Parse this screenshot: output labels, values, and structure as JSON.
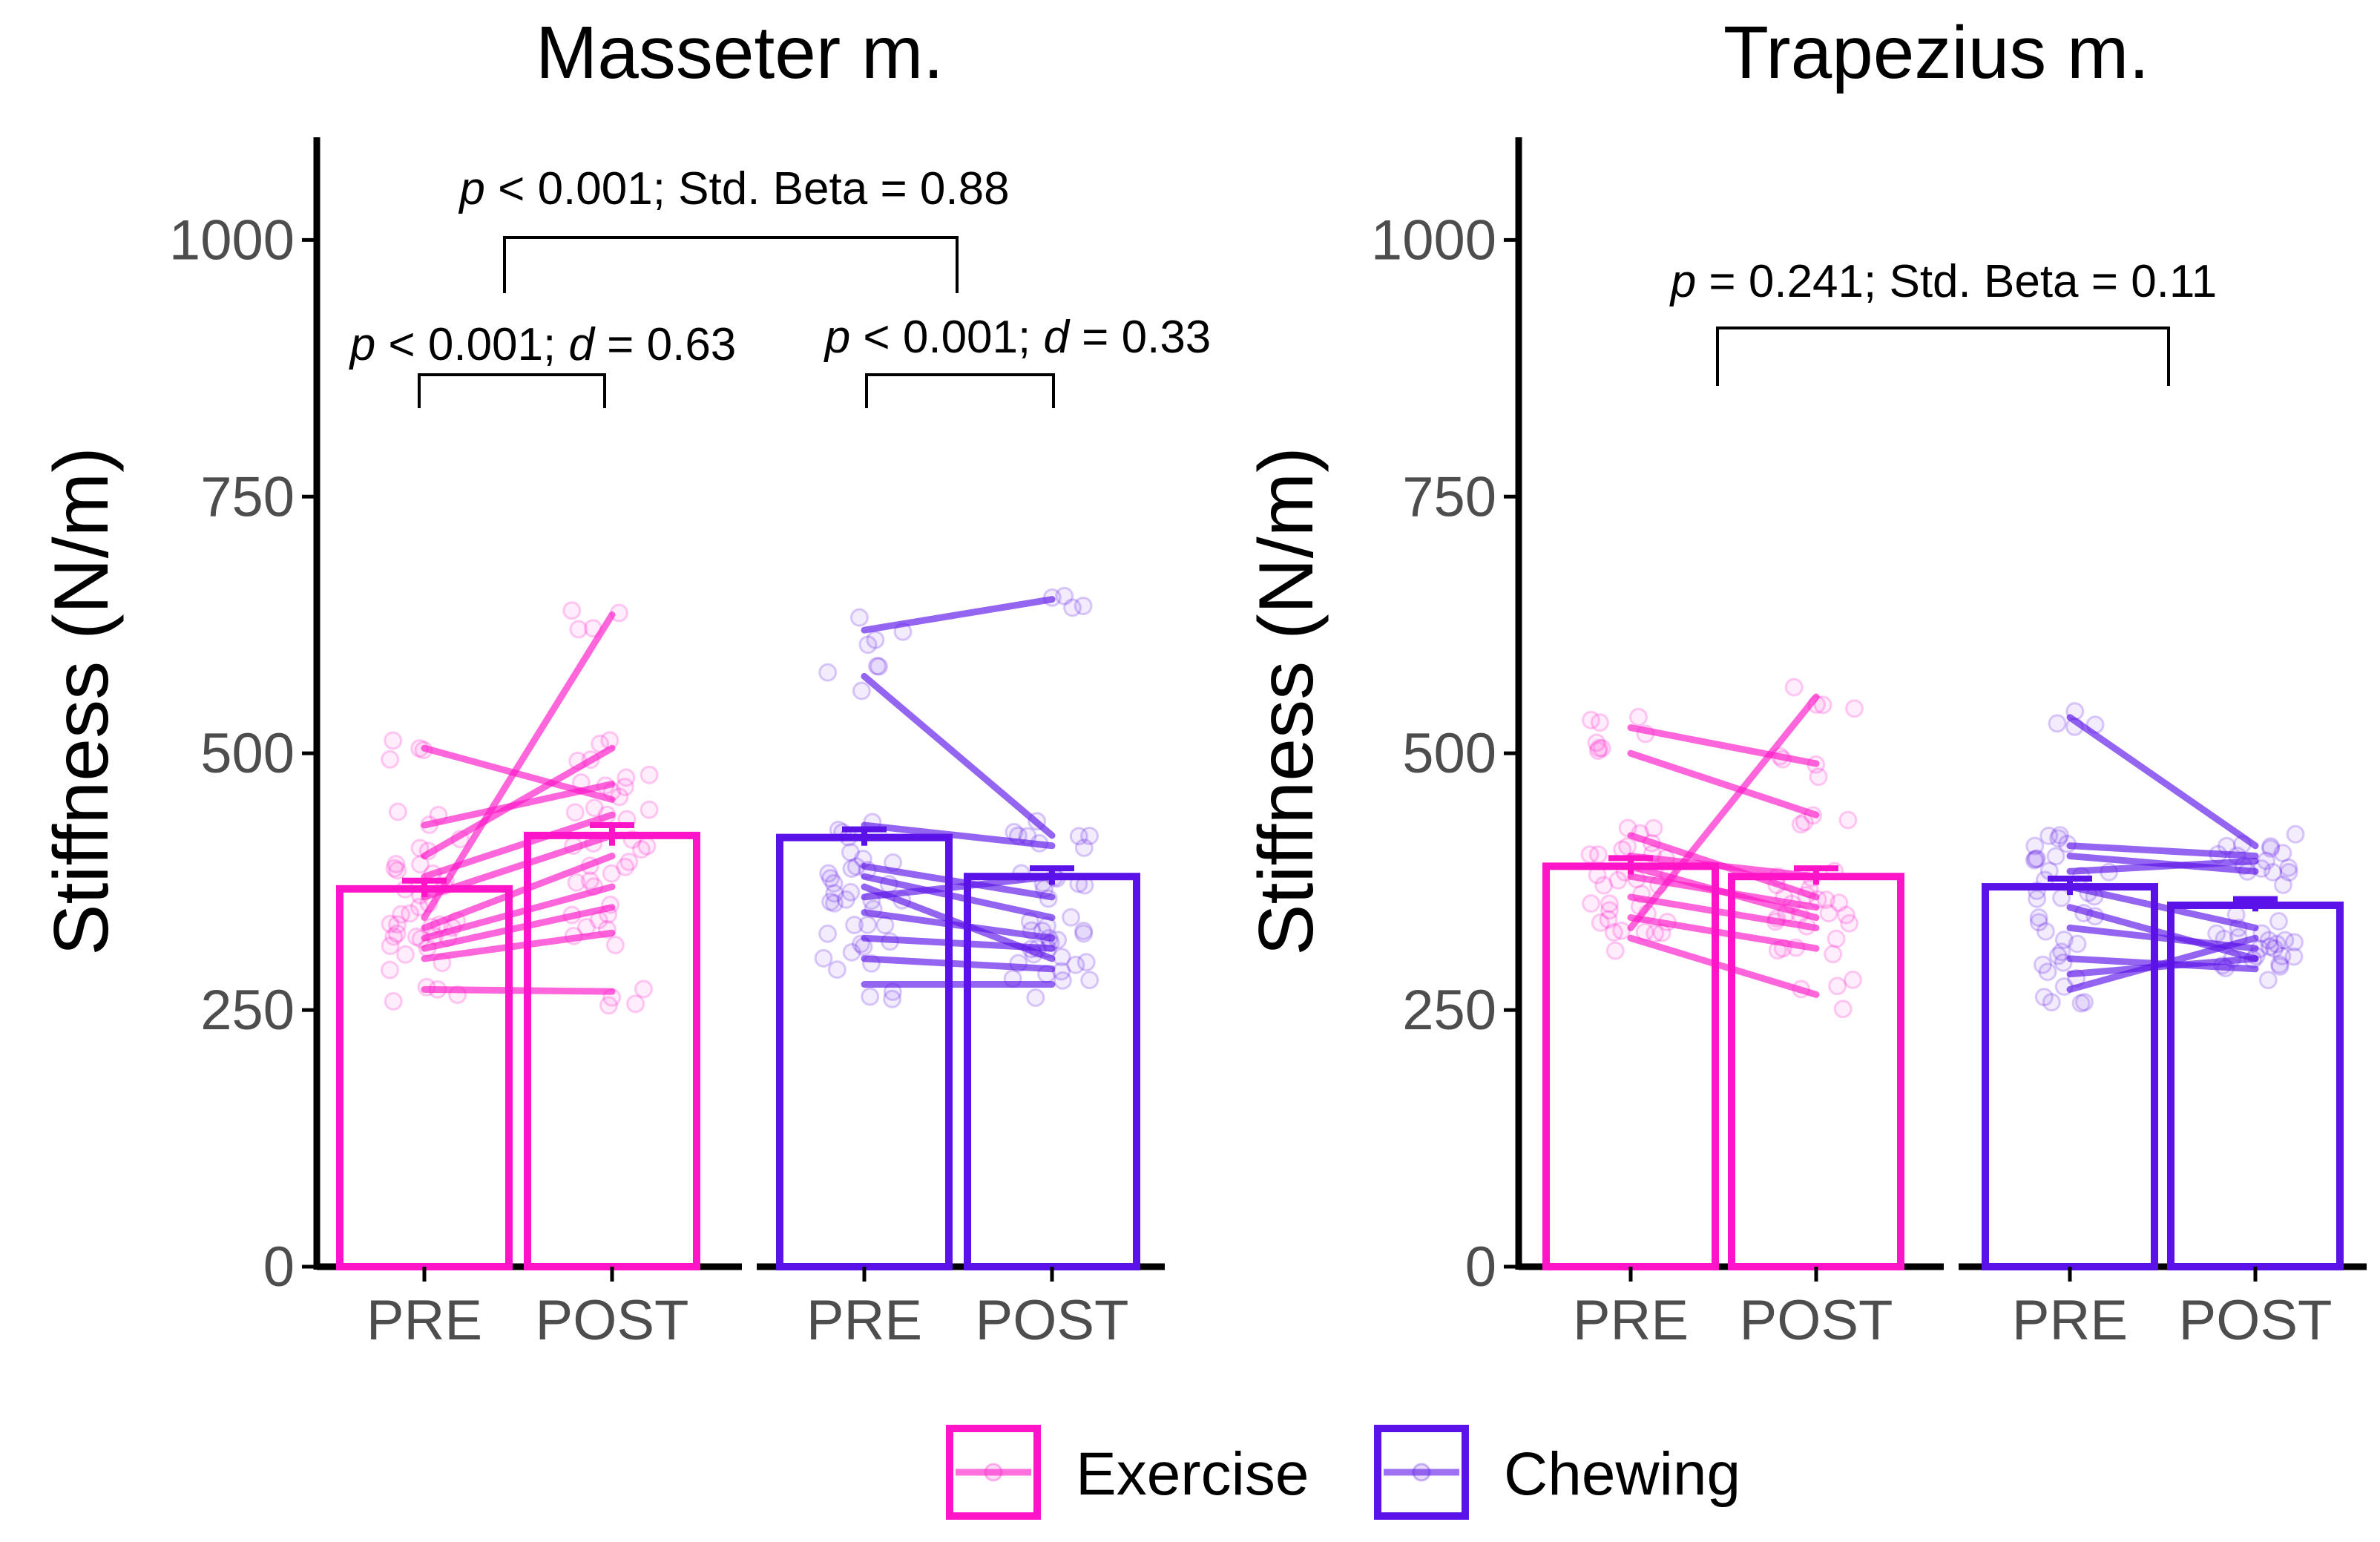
{
  "colors": {
    "exercise": "#ff14c8",
    "chewing": "#5b12e8",
    "axis": "#000000",
    "tick_label": "#4d4d4d"
  },
  "legend": {
    "exercise_label": "Exercise",
    "chewing_label": "Chewing"
  },
  "chart_data": [
    {
      "type": "bar",
      "title": "Masseter m.",
      "ylabel": "Stiffness (N/m)",
      "ylim": [
        0,
        1100
      ],
      "yticks": [
        0,
        250,
        500,
        750,
        1000
      ],
      "ytick_labels": [
        "0",
        "250",
        "500",
        "750",
        "1000"
      ],
      "categories": [
        "PRE",
        "POST"
      ],
      "series": [
        {
          "name": "Exercise",
          "values": [
            368,
            420
          ],
          "se": [
            8,
            10
          ]
        },
        {
          "name": "Chewing",
          "values": [
            418,
            380
          ],
          "se": [
            8,
            8
          ]
        }
      ],
      "paired_lines": {
        "Exercise": [
          [
            505,
            455
          ],
          [
            430,
            470
          ],
          [
            400,
            505
          ],
          [
            380,
            440
          ],
          [
            360,
            420
          ],
          [
            340,
            635
          ],
          [
            330,
            400
          ],
          [
            320,
            370
          ],
          [
            310,
            350
          ],
          [
            300,
            325
          ],
          [
            270,
            268
          ]
        ],
        "Chewing": [
          [
            620,
            650
          ],
          [
            575,
            420
          ],
          [
            430,
            410
          ],
          [
            390,
            360
          ],
          [
            380,
            340
          ],
          [
            370,
            300
          ],
          [
            360,
            380
          ],
          [
            345,
            320
          ],
          [
            320,
            310
          ],
          [
            300,
            290
          ],
          [
            275,
            275
          ]
        ]
      },
      "annotations": [
        {
          "p_italic": "p",
          "p_text": " < 0.001; ",
          "stat_italic": "Std. Beta",
          "stat_text": " = 0.88",
          "bracket": "between-groups"
        },
        {
          "p_italic": "p",
          "p_text": " < 0.001; ",
          "stat_italic": "d",
          "stat_text": " = 0.63",
          "bracket": "Exercise PRE-POST"
        },
        {
          "p_italic": "p",
          "p_text": " < 0.001; ",
          "stat_italic": "d",
          "stat_text": " = 0.33",
          "bracket": "Chewing PRE-POST"
        }
      ]
    },
    {
      "type": "bar",
      "title": "Trapezius m.",
      "ylabel": "Stiffness (N/m)",
      "ylim": [
        0,
        1100
      ],
      "yticks": [
        0,
        250,
        500,
        750,
        1000
      ],
      "ytick_labels": [
        "0",
        "250",
        "500",
        "750",
        "1000"
      ],
      "categories": [
        "PRE",
        "POST"
      ],
      "series": [
        {
          "name": "Exercise",
          "values": [
            390,
            380
          ],
          "se": [
            8,
            8
          ]
        },
        {
          "name": "Chewing",
          "values": [
            370,
            352
          ],
          "se": [
            8,
            6
          ]
        }
      ],
      "paired_lines": {
        "Exercise": [
          [
            525,
            490
          ],
          [
            500,
            440
          ],
          [
            420,
            360
          ],
          [
            400,
            380
          ],
          [
            390,
            340
          ],
          [
            380,
            350
          ],
          [
            360,
            330
          ],
          [
            340,
            310
          ],
          [
            330,
            555
          ],
          [
            320,
            265
          ]
        ],
        "Chewing": [
          [
            535,
            410
          ],
          [
            410,
            400
          ],
          [
            400,
            385
          ],
          [
            385,
            395
          ],
          [
            370,
            330
          ],
          [
            350,
            300
          ],
          [
            330,
            310
          ],
          [
            300,
            290
          ],
          [
            285,
            300
          ],
          [
            270,
            320
          ]
        ]
      },
      "annotations": [
        {
          "p_italic": "p",
          "p_text": " = 0.241; ",
          "stat_italic": "Std. Beta",
          "stat_text": " = 0.11",
          "bracket": "between-groups"
        }
      ]
    }
  ]
}
